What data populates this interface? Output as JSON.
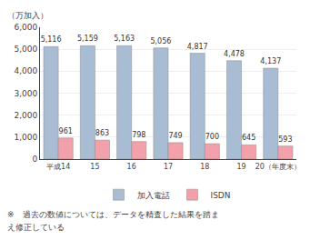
{
  "chart_data": {
    "type": "bar",
    "categories": [
      "平成14",
      "15",
      "16",
      "17",
      "18",
      "19",
      "20（年度末）"
    ],
    "series": [
      {
        "name": "加入電話",
        "color": "#a8bdd4",
        "values": [
          5116,
          5159,
          5163,
          5056,
          4817,
          4478,
          4137
        ],
        "value_labels": [
          "5,116",
          "5,159",
          "5,163",
          "5,056",
          "4,817",
          "4,478",
          "4,137"
        ]
      },
      {
        "name": "ISDN",
        "color": "#f2a0aa",
        "values": [
          961,
          863,
          798,
          749,
          700,
          645,
          593
        ]
      }
    ],
    "ylabel": "（万加入）",
    "ylim": [
      0,
      6000
    ],
    "yticks": [
      0,
      {
        "value": 1000,
        "label": "1,000"
      },
      {
        "value": 2000,
        "label": "2,000"
      },
      {
        "value": 3000,
        "label": "3,000"
      },
      {
        "value": 4000,
        "label": "4,000"
      },
      {
        "value": 5000,
        "label": "5,000"
      },
      {
        "value": 6000,
        "label": "6,000"
      }
    ],
    "grid": true,
    "legend": "bottom",
    "data_labels": true,
    "annotations": [
      "※　過去の数値については、データを精査した結果を踏ま",
      "え修正している"
    ]
  }
}
